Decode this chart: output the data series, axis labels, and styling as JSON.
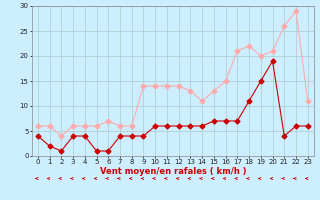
{
  "x": [
    0,
    1,
    2,
    3,
    4,
    5,
    6,
    7,
    8,
    9,
    10,
    11,
    12,
    13,
    14,
    15,
    16,
    17,
    18,
    19,
    20,
    21,
    22,
    23
  ],
  "vent_moyen": [
    4,
    2,
    1,
    4,
    4,
    1,
    1,
    4,
    4,
    4,
    6,
    6,
    6,
    6,
    6,
    7,
    7,
    7,
    11,
    15,
    19,
    4,
    6,
    6
  ],
  "rafales": [
    6,
    6,
    4,
    6,
    6,
    6,
    7,
    6,
    6,
    14,
    14,
    14,
    14,
    13,
    11,
    13,
    15,
    21,
    22,
    20,
    21,
    26,
    29,
    11
  ],
  "color_moyen": "#cc0000",
  "color_rafales": "#ffaaaa",
  "bg_color": "#cceeff",
  "grid_color": "#aacccc",
  "xlabel": "Vent moyen/en rafales ( km/h )",
  "ylim": [
    0,
    30
  ],
  "xlim_min": -0.5,
  "xlim_max": 23.5,
  "yticks": [
    0,
    5,
    10,
    15,
    20,
    25,
    30
  ],
  "xticks": [
    0,
    1,
    2,
    3,
    4,
    5,
    6,
    7,
    8,
    9,
    10,
    11,
    12,
    13,
    14,
    15,
    16,
    17,
    18,
    19,
    20,
    21,
    22,
    23
  ],
  "marker": "D",
  "markersize": 2.5,
  "linewidth": 0.8,
  "tick_fontsize": 5,
  "xlabel_fontsize": 6,
  "arrow_color": "#cc0000"
}
